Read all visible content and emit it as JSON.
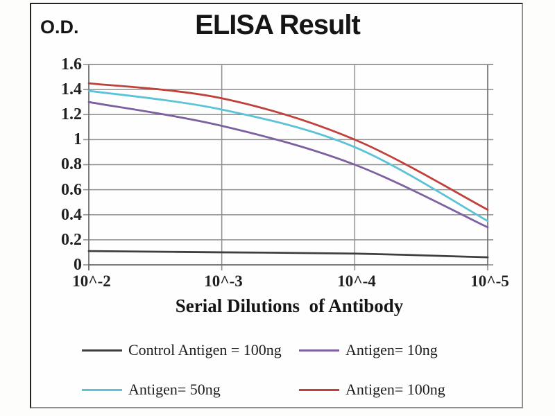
{
  "title": "ELISA Result",
  "y_axis_label": "O.D.",
  "x_axis_label": "Serial Dilutions  of Antibody",
  "colors": {
    "gridline": "#8f8f8f",
    "plot_border": "#8f8f8f",
    "frame_border": "#242424",
    "text": "#1c1c1c"
  },
  "chart_data": {
    "type": "line",
    "title": "ELISA Result",
    "xlabel": "Serial Dilutions of Antibody",
    "ylabel": "O.D.",
    "x_tick_labels": [
      "10^-2",
      "10^-3",
      "10^-4",
      "10^-5"
    ],
    "y_tick_labels": [
      "1.6",
      "1.4",
      "1.2",
      "1",
      "0.8",
      "0.6",
      "0.4",
      "0.2",
      "0"
    ],
    "y_tick_values": [
      1.6,
      1.4,
      1.2,
      1.0,
      0.8,
      0.6,
      0.4,
      0.2,
      0
    ],
    "ylim": [
      0,
      1.6
    ],
    "grid": true,
    "legend_position": "bottom",
    "series": [
      {
        "name": "Control Antigen = 100ng",
        "color": "#3f3f3f",
        "values": [
          0.11,
          0.1,
          0.09,
          0.06
        ]
      },
      {
        "name": "Antigen= 10ng",
        "color": "#7d60a0",
        "values": [
          1.3,
          1.11,
          0.8,
          0.3
        ]
      },
      {
        "name": "Antigen= 50ng",
        "color": "#5bc2d8",
        "values": [
          1.39,
          1.24,
          0.94,
          0.35
        ]
      },
      {
        "name": "Antigen= 100ng",
        "color": "#c0403b",
        "values": [
          1.45,
          1.33,
          1.0,
          0.44
        ]
      }
    ]
  }
}
